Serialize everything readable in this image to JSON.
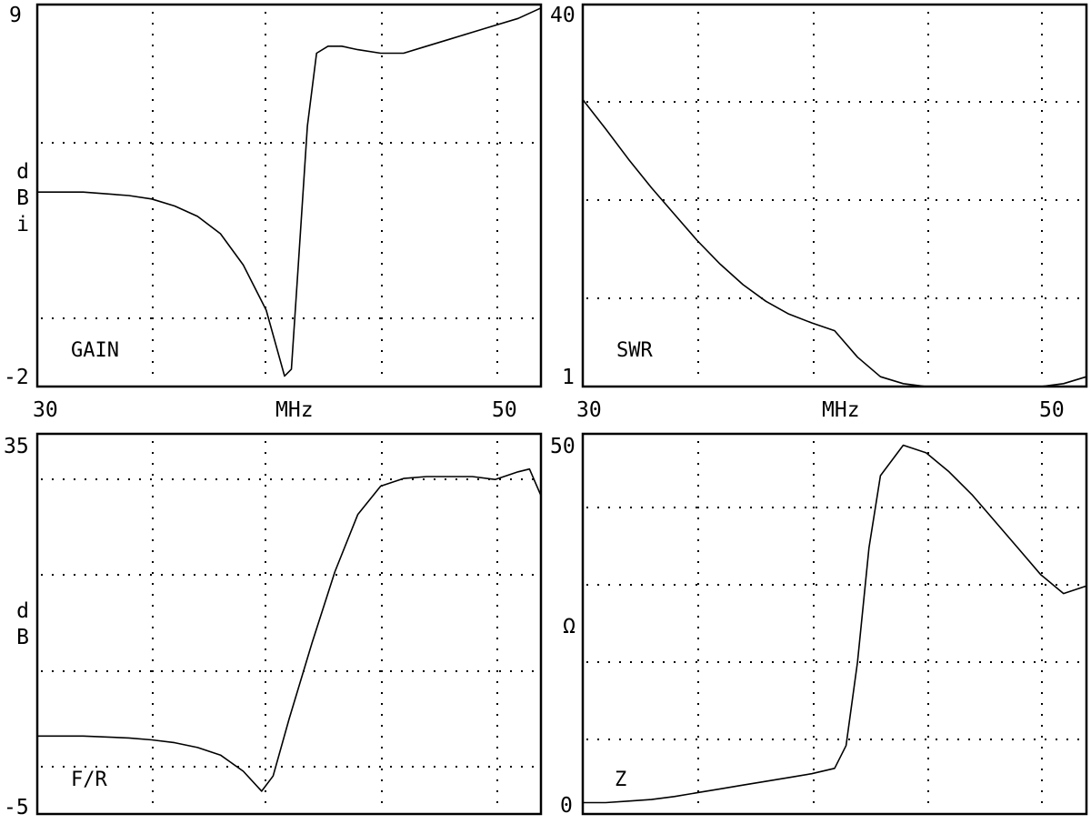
{
  "chart_data": [
    {
      "type": "line",
      "title": "GAIN",
      "ylabel": "dBi",
      "xlabel": "MHz",
      "xlim": [
        30,
        52
      ],
      "ylim": [
        -2,
        9
      ],
      "y_tick_labels": [
        "9",
        "-2"
      ],
      "x_tick_labels": [
        "30",
        "50"
      ],
      "series": [
        {
          "x": [
            30,
            32,
            34,
            35,
            36,
            37,
            38,
            39,
            40,
            40.8,
            41.1,
            41.4,
            41.8,
            42.2,
            42.7,
            43.3,
            44,
            45,
            46,
            47,
            48,
            49,
            50,
            51,
            52
          ],
          "y": [
            3.6,
            3.6,
            3.5,
            3.4,
            3.2,
            2.9,
            2.4,
            1.5,
            0.2,
            -1.7,
            -1.5,
            1.5,
            5.5,
            7.6,
            7.8,
            7.8,
            7.7,
            7.6,
            7.6,
            7.8,
            8.0,
            8.2,
            8.4,
            8.6,
            8.9
          ]
        }
      ]
    },
    {
      "type": "line",
      "title": "SWR",
      "ylabel": "",
      "xlabel": "MHz",
      "xlim": [
        30,
        52
      ],
      "ylim": [
        1,
        40
      ],
      "y_tick_labels": [
        "40",
        "1"
      ],
      "x_tick_labels": [
        "30",
        "50"
      ],
      "series": [
        {
          "x": [
            30,
            31,
            32,
            33,
            34,
            35,
            36,
            37,
            38,
            39,
            40,
            41,
            42,
            43,
            44,
            45,
            46,
            47,
            48,
            49,
            50,
            51,
            52
          ],
          "y": [
            30.3,
            27.3,
            24.2,
            21.3,
            18.6,
            15.9,
            13.5,
            11.4,
            9.7,
            8.4,
            7.5,
            6.7,
            4.0,
            2.0,
            1.3,
            0.9,
            0.8,
            0.8,
            0.8,
            0.9,
            1.0,
            1.3,
            2.0
          ]
        }
      ]
    },
    {
      "type": "line",
      "title": "F/R",
      "ylabel": "dB",
      "xlabel": "",
      "xlim": [
        30,
        52
      ],
      "ylim": [
        -5,
        35
      ],
      "y_tick_labels": [
        "35",
        "-5"
      ],
      "x_tick_labels": [],
      "series": [
        {
          "x": [
            30,
            32,
            34,
            35,
            36,
            37,
            38,
            39,
            39.8,
            40.3,
            41,
            42,
            43,
            44,
            45,
            46,
            47,
            48,
            49,
            50,
            51,
            51.5,
            52
          ],
          "y": [
            3.2,
            3.2,
            3.0,
            2.8,
            2.5,
            2.0,
            1.2,
            -0.5,
            -2.6,
            -1.0,
            5.0,
            13.0,
            20.5,
            26.5,
            29.5,
            30.3,
            30.5,
            30.5,
            30.5,
            30.2,
            31.0,
            31.3,
            28.5
          ]
        }
      ]
    },
    {
      "type": "line",
      "title": "Z",
      "ylabel": "Ω",
      "xlabel": "",
      "xlim": [
        30,
        52
      ],
      "ylim": [
        0,
        50
      ],
      "y_tick_labels": [
        "50",
        "0"
      ],
      "x_tick_labels": [],
      "series": [
        {
          "x": [
            30,
            31,
            32,
            33,
            34,
            35,
            36,
            37,
            38,
            39,
            40,
            41,
            41.5,
            42,
            42.5,
            43,
            44,
            45,
            46,
            47,
            48,
            49,
            50,
            51,
            52
          ],
          "y": [
            1.5,
            1.5,
            1.7,
            1.9,
            2.3,
            2.8,
            3.3,
            3.8,
            4.3,
            4.8,
            5.3,
            6.0,
            9.0,
            20.0,
            35.0,
            44.5,
            48.5,
            47.5,
            45.0,
            42.0,
            38.5,
            35.0,
            31.5,
            29.0,
            30.0
          ]
        }
      ]
    }
  ]
}
